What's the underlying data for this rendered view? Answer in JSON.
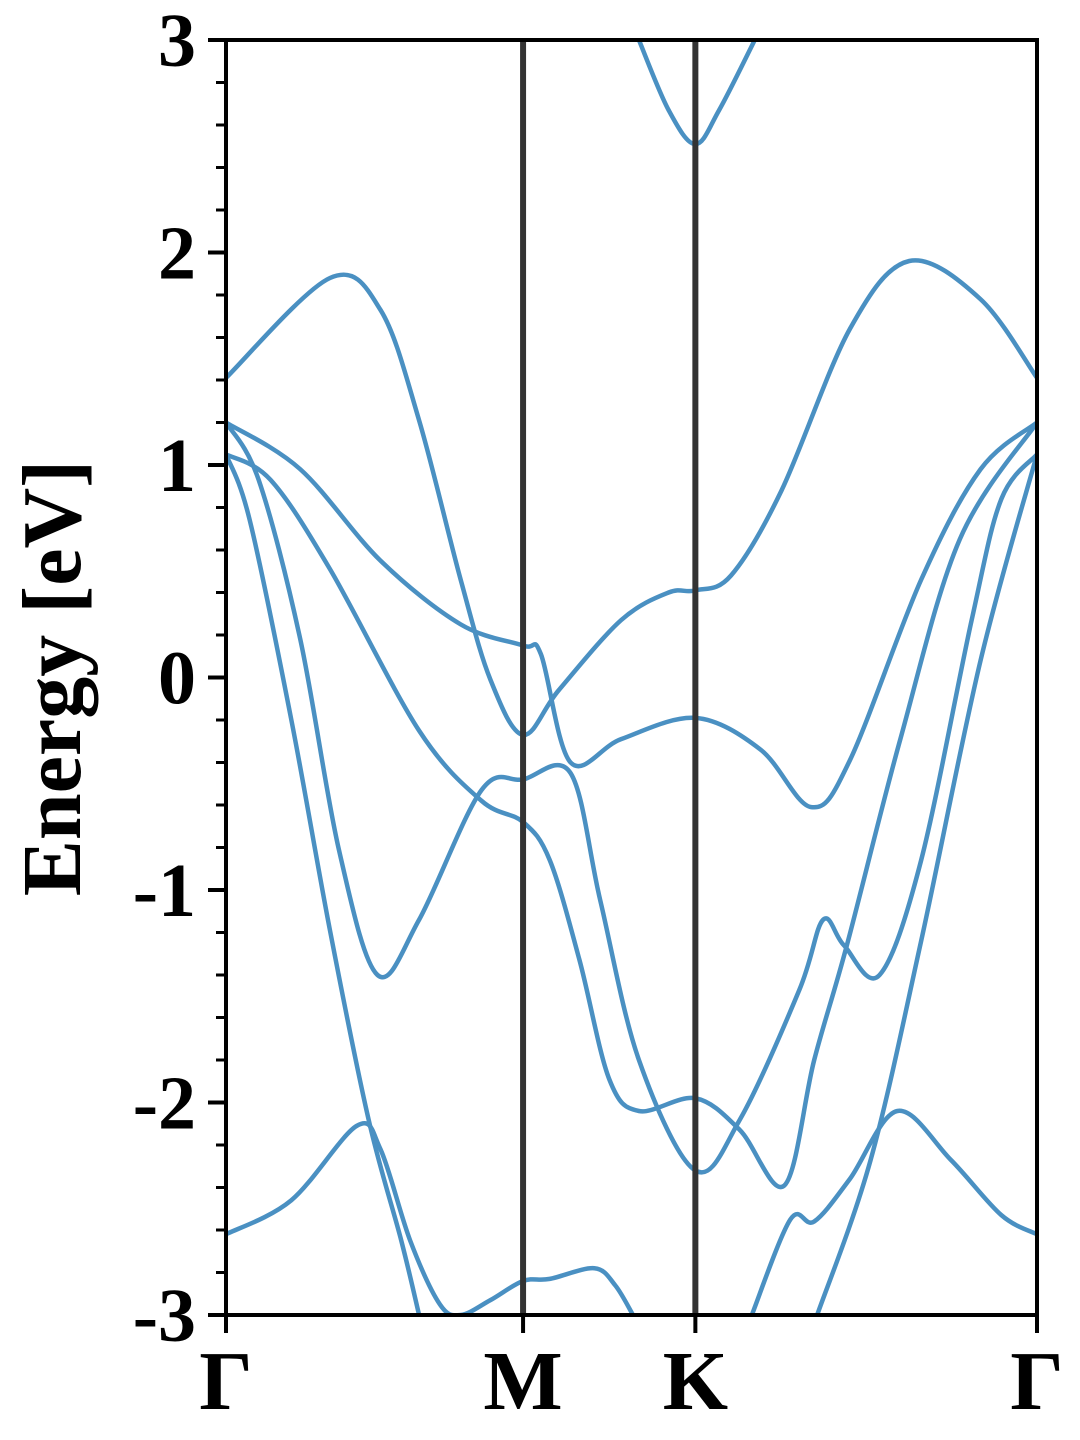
{
  "chart_data": {
    "type": "line",
    "ylabel": "Energy [eV]",
    "color": "#4a90c2",
    "xlim": [
      0,
      2.73
    ],
    "ylim": [
      -3,
      3
    ],
    "xticks": [
      {
        "value": 0,
        "label": "Γ"
      },
      {
        "value": 1.0,
        "label": "M"
      },
      {
        "value": 1.58,
        "label": "K"
      },
      {
        "value": 2.73,
        "label": "Γ"
      }
    ],
    "symmetry_lines": true,
    "yticks": [
      -3,
      -2,
      -1,
      0,
      1,
      2,
      3
    ],
    "yminorticks": [
      -2.8,
      -2.6,
      -2.4,
      -2.2,
      -1.8,
      -1.6,
      -1.4,
      -1.2,
      -0.8,
      -0.6,
      -0.4,
      -0.2,
      0.2,
      0.4,
      0.6,
      0.8,
      1.2,
      1.4,
      1.6,
      1.8,
      2.2,
      2.4,
      2.6,
      2.8
    ],
    "series": [
      {
        "x": [
          0,
          0.35,
          0.52,
          0.65,
          0.79,
          0.89,
          1.0,
          1.12,
          1.33,
          1.49,
          1.58,
          1.7,
          1.87,
          2.1,
          2.3,
          2.54,
          2.73
        ],
        "values": [
          1.41,
          1.88,
          1.73,
          1.21,
          0.46,
          -0.01,
          -0.27,
          -0.06,
          0.27,
          0.4,
          0.41,
          0.48,
          0.88,
          1.64,
          1.96,
          1.78,
          1.41
        ]
      },
      {
        "x": [
          0,
          0.25,
          0.52,
          0.79,
          1.0,
          1.06,
          1.16,
          1.33,
          1.58,
          1.8,
          1.97,
          2.1,
          2.34,
          2.54,
          2.73
        ],
        "values": [
          1.2,
          0.98,
          0.55,
          0.25,
          0.15,
          0.11,
          -0.4,
          -0.29,
          -0.19,
          -0.34,
          -0.61,
          -0.39,
          0.46,
          0.98,
          1.2
        ]
      },
      {
        "x": [
          0,
          0.15,
          0.35,
          0.65,
          0.86,
          1.0,
          1.09,
          1.19,
          1.29,
          1.39,
          1.58,
          1.73,
          1.88,
          1.98,
          2.09,
          2.27,
          2.47,
          2.73
        ],
        "values": [
          1.05,
          0.93,
          0.51,
          -0.25,
          -0.58,
          -0.68,
          -0.86,
          -1.33,
          -1.89,
          -2.04,
          -1.98,
          -2.13,
          -2.39,
          -1.8,
          -1.26,
          -0.29,
          0.65,
          1.2
        ]
      },
      {
        "x": [
          0,
          0.11,
          0.25,
          0.38,
          0.51,
          0.65,
          0.86,
          1.0,
          1.16,
          1.26,
          1.39,
          1.58,
          1.73,
          1.93,
          2.01,
          2.08,
          2.2,
          2.34,
          2.51,
          2.61,
          2.73
        ],
        "values": [
          1.2,
          0.93,
          0.18,
          -0.81,
          -1.4,
          -1.14,
          -0.53,
          -0.48,
          -0.45,
          -1.05,
          -1.8,
          -2.32,
          -2.08,
          -1.47,
          -1.14,
          -1.26,
          -1.4,
          -0.86,
          0.27,
          0.84,
          1.05
        ]
      },
      {
        "x": [
          0,
          0.08,
          0.22,
          0.35,
          0.48,
          0.59,
          0.65
        ],
        "values": [
          1.05,
          0.74,
          -0.2,
          -1.19,
          -2.08,
          -2.65,
          -3.0
        ]
      },
      {
        "x": [
          1.99,
          2.17,
          2.34,
          2.54,
          2.73
        ],
        "values": [
          -3.0,
          -2.27,
          -1.24,
          0.08,
          1.05
        ]
      },
      {
        "x": [
          0,
          0.22,
          0.44,
          0.52,
          0.62,
          0.72,
          0.79,
          0.89,
          1.0,
          1.09,
          1.24,
          1.31,
          1.37
        ],
        "values": [
          -2.62,
          -2.46,
          -2.11,
          -2.22,
          -2.65,
          -2.95,
          -3.0,
          -2.93,
          -2.84,
          -2.83,
          -2.78,
          -2.86,
          -3.0
        ]
      },
      {
        "x": [
          1.77,
          1.9,
          1.98,
          2.1,
          2.26,
          2.44,
          2.61,
          2.73
        ],
        "values": [
          -3.0,
          -2.55,
          -2.56,
          -2.36,
          -2.04,
          -2.27,
          -2.53,
          -2.62
        ]
      },
      {
        "x": [
          1.39,
          1.49,
          1.58,
          1.66,
          1.78
        ],
        "values": [
          3.0,
          2.67,
          2.51,
          2.67,
          3.0
        ]
      }
    ]
  }
}
